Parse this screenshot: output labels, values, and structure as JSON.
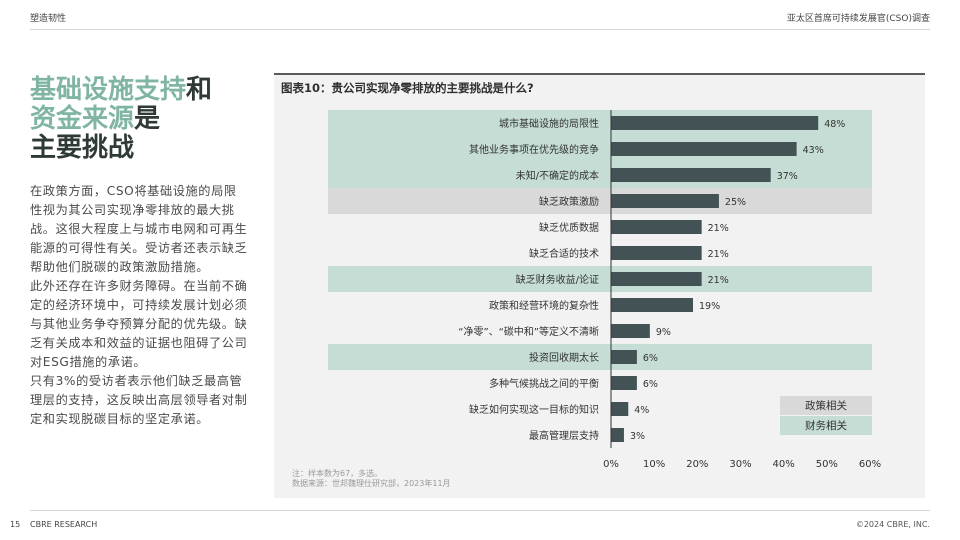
{
  "header": {
    "left": "塑造韧性",
    "right": "亚太区首席可持续发展官(CSO)调查"
  },
  "title": {
    "part1_green": "基础设施支持",
    "part1_dark": "和",
    "part2_green": "资金来源",
    "part2_dark": "是",
    "part3_dark": "主要挑战"
  },
  "paragraphs": [
    "在政策方面，CSO将基础设施的局限性视为其公司实现净零排放的最大挑战。这很大程度上与城市电网和可再生能源的可得性有关。受访者还表示缺乏帮助他们脱碳的政策激励措施。",
    "此外还存在许多财务障碍。在当前不确定的经济环境中，可持续发展计划必须与其他业务争夺预算分配的优先级。缺乏有关成本和效益的证据也阻碍了公司对ESG措施的承诺。",
    "只有3%的受访者表示他们缺乏最高管理层的支持，这反映出高层领导者对制定和实现脱碳目标的坚定承诺。"
  ],
  "chart_data": {
    "type": "bar",
    "orientation": "horizontal",
    "title": "图表10：贵公司实现净零排放的主要挑战是什么?",
    "categories": [
      "城市基础设施的局限性",
      "其他业务事项在优先级的竞争",
      "未知/不确定的成本",
      "缺乏政策激励",
      "缺乏优质数据",
      "缺乏合适的技术",
      "缺乏财务收益/论证",
      "政策和经营环境的复杂性",
      "“净零”、“碳中和”等定义不清晰",
      "投资回收期太长",
      "多种气候挑战之间的平衡",
      "缺乏如何实现这一目标的知识",
      "最高管理层支持"
    ],
    "values": [
      48,
      43,
      37,
      25,
      21,
      21,
      21,
      19,
      9,
      6,
      6,
      4,
      3
    ],
    "value_labels": [
      "48%",
      "43%",
      "37%",
      "25%",
      "21%",
      "21%",
      "21%",
      "19%",
      "9%",
      "6%",
      "6%",
      "4%",
      "3%"
    ],
    "highlight": [
      "财务相关",
      "财务相关",
      "财务相关",
      "政策相关",
      "none",
      "none",
      "财务相关",
      "none",
      "none",
      "财务相关",
      "none",
      "none",
      "none"
    ],
    "xlim": [
      0,
      60
    ],
    "x_ticks": [
      "0%",
      "10%",
      "20%",
      "30%",
      "40%",
      "50%",
      "60%"
    ],
    "legend": [
      {
        "label": "政策相关",
        "color": "#d9d9d9"
      },
      {
        "label": "财务相关",
        "color": "#c5ddd4"
      }
    ],
    "bar_color": "#435254",
    "legend_position": "bottom-right"
  },
  "note": "注：样本数为67，多选。",
  "source": "数据来源：世邦魏理仕研究部，2023年11月",
  "footer": {
    "page": "15",
    "left": "CBRE RESEARCH",
    "right": "©2024 CBRE, INC."
  }
}
